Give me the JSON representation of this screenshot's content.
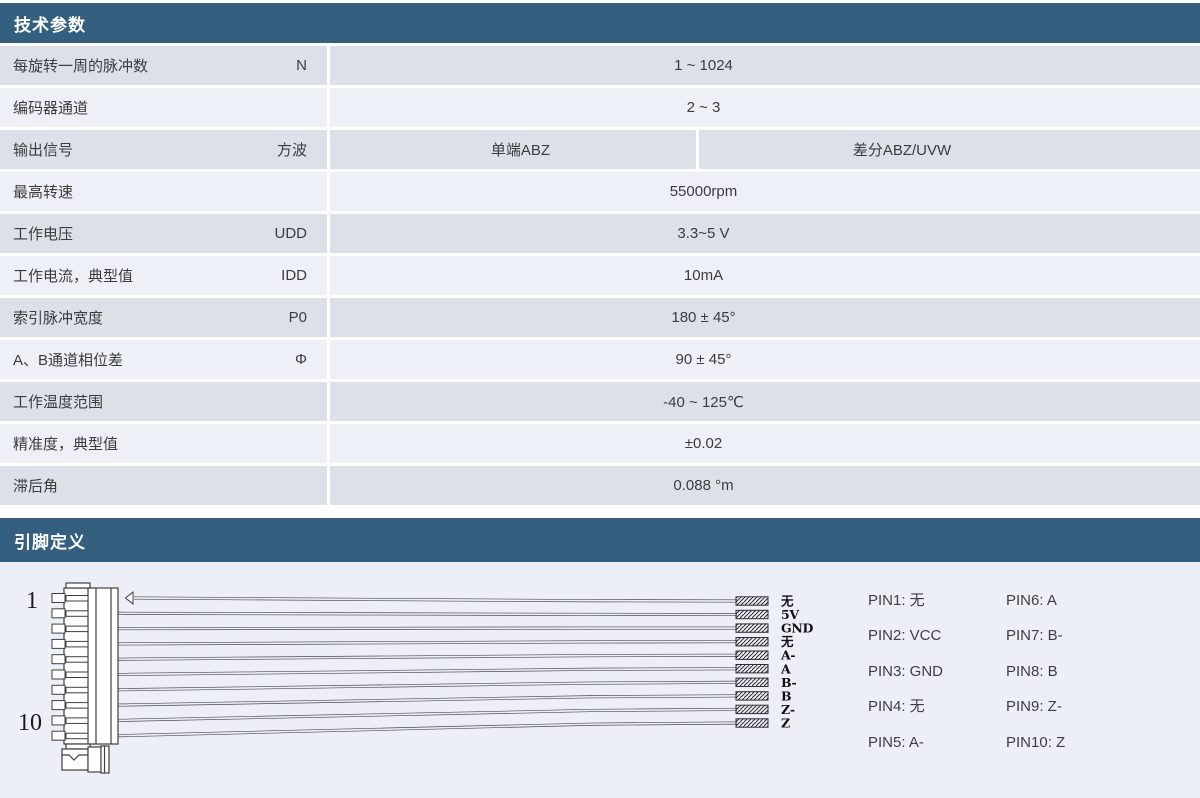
{
  "sections": {
    "tech": {
      "title": "技术参数",
      "rows": [
        {
          "label": "每旋转一周的脉冲数",
          "symbol": "N",
          "value": "1 ~ 1024"
        },
        {
          "label": "编码器通道",
          "symbol": "",
          "value": "2 ~ 3"
        },
        {
          "label": "输出信号",
          "symbol": "方波",
          "value": "单端ABZ",
          "value2": "差分ABZ/UVW"
        },
        {
          "label": "最高转速",
          "symbol": "",
          "value": "55000rpm"
        },
        {
          "label": "工作电压",
          "symbol": "UDD",
          "value": "3.3~5 V"
        },
        {
          "label": "工作电流，典型值",
          "symbol": "IDD",
          "value": "10mA"
        },
        {
          "label": "索引脉冲宽度",
          "symbol": "P0",
          "value": "180 ± 45°"
        },
        {
          "label": "A、B通道相位差",
          "symbol": "Φ",
          "value": "90 ± 45°"
        },
        {
          "label": "工作温度范围",
          "symbol": "",
          "value": "-40 ~ 125℃"
        },
        {
          "label": "精准度，典型值",
          "symbol": "",
          "value": "±0.02"
        },
        {
          "label": "滞后角",
          "symbol": "",
          "value": "0.088 °m"
        }
      ]
    },
    "pins": {
      "title": "引脚定义",
      "connector_top_label": "1",
      "connector_bottom_label": "10",
      "wire_labels": [
        "无",
        "5V",
        "GND",
        "无",
        "A-",
        "A",
        "B-",
        "B",
        "Z-",
        "Z"
      ],
      "pin_list_col1": [
        "PIN1: 无",
        "PIN2: VCC",
        "PIN3: GND",
        "PIN4: 无",
        "PIN5: A-"
      ],
      "pin_list_col2": [
        "PIN6: A",
        "PIN7: B-",
        "PIN8: B",
        "PIN9: Z-",
        "PIN10: Z"
      ]
    }
  },
  "colors": {
    "header_bg": "#355F7E",
    "row_dark": "#DCE1E9",
    "row_light": "#EDF0F6",
    "pin_section_bg": "#ECEFF7",
    "text": "#3C3C3C"
  }
}
